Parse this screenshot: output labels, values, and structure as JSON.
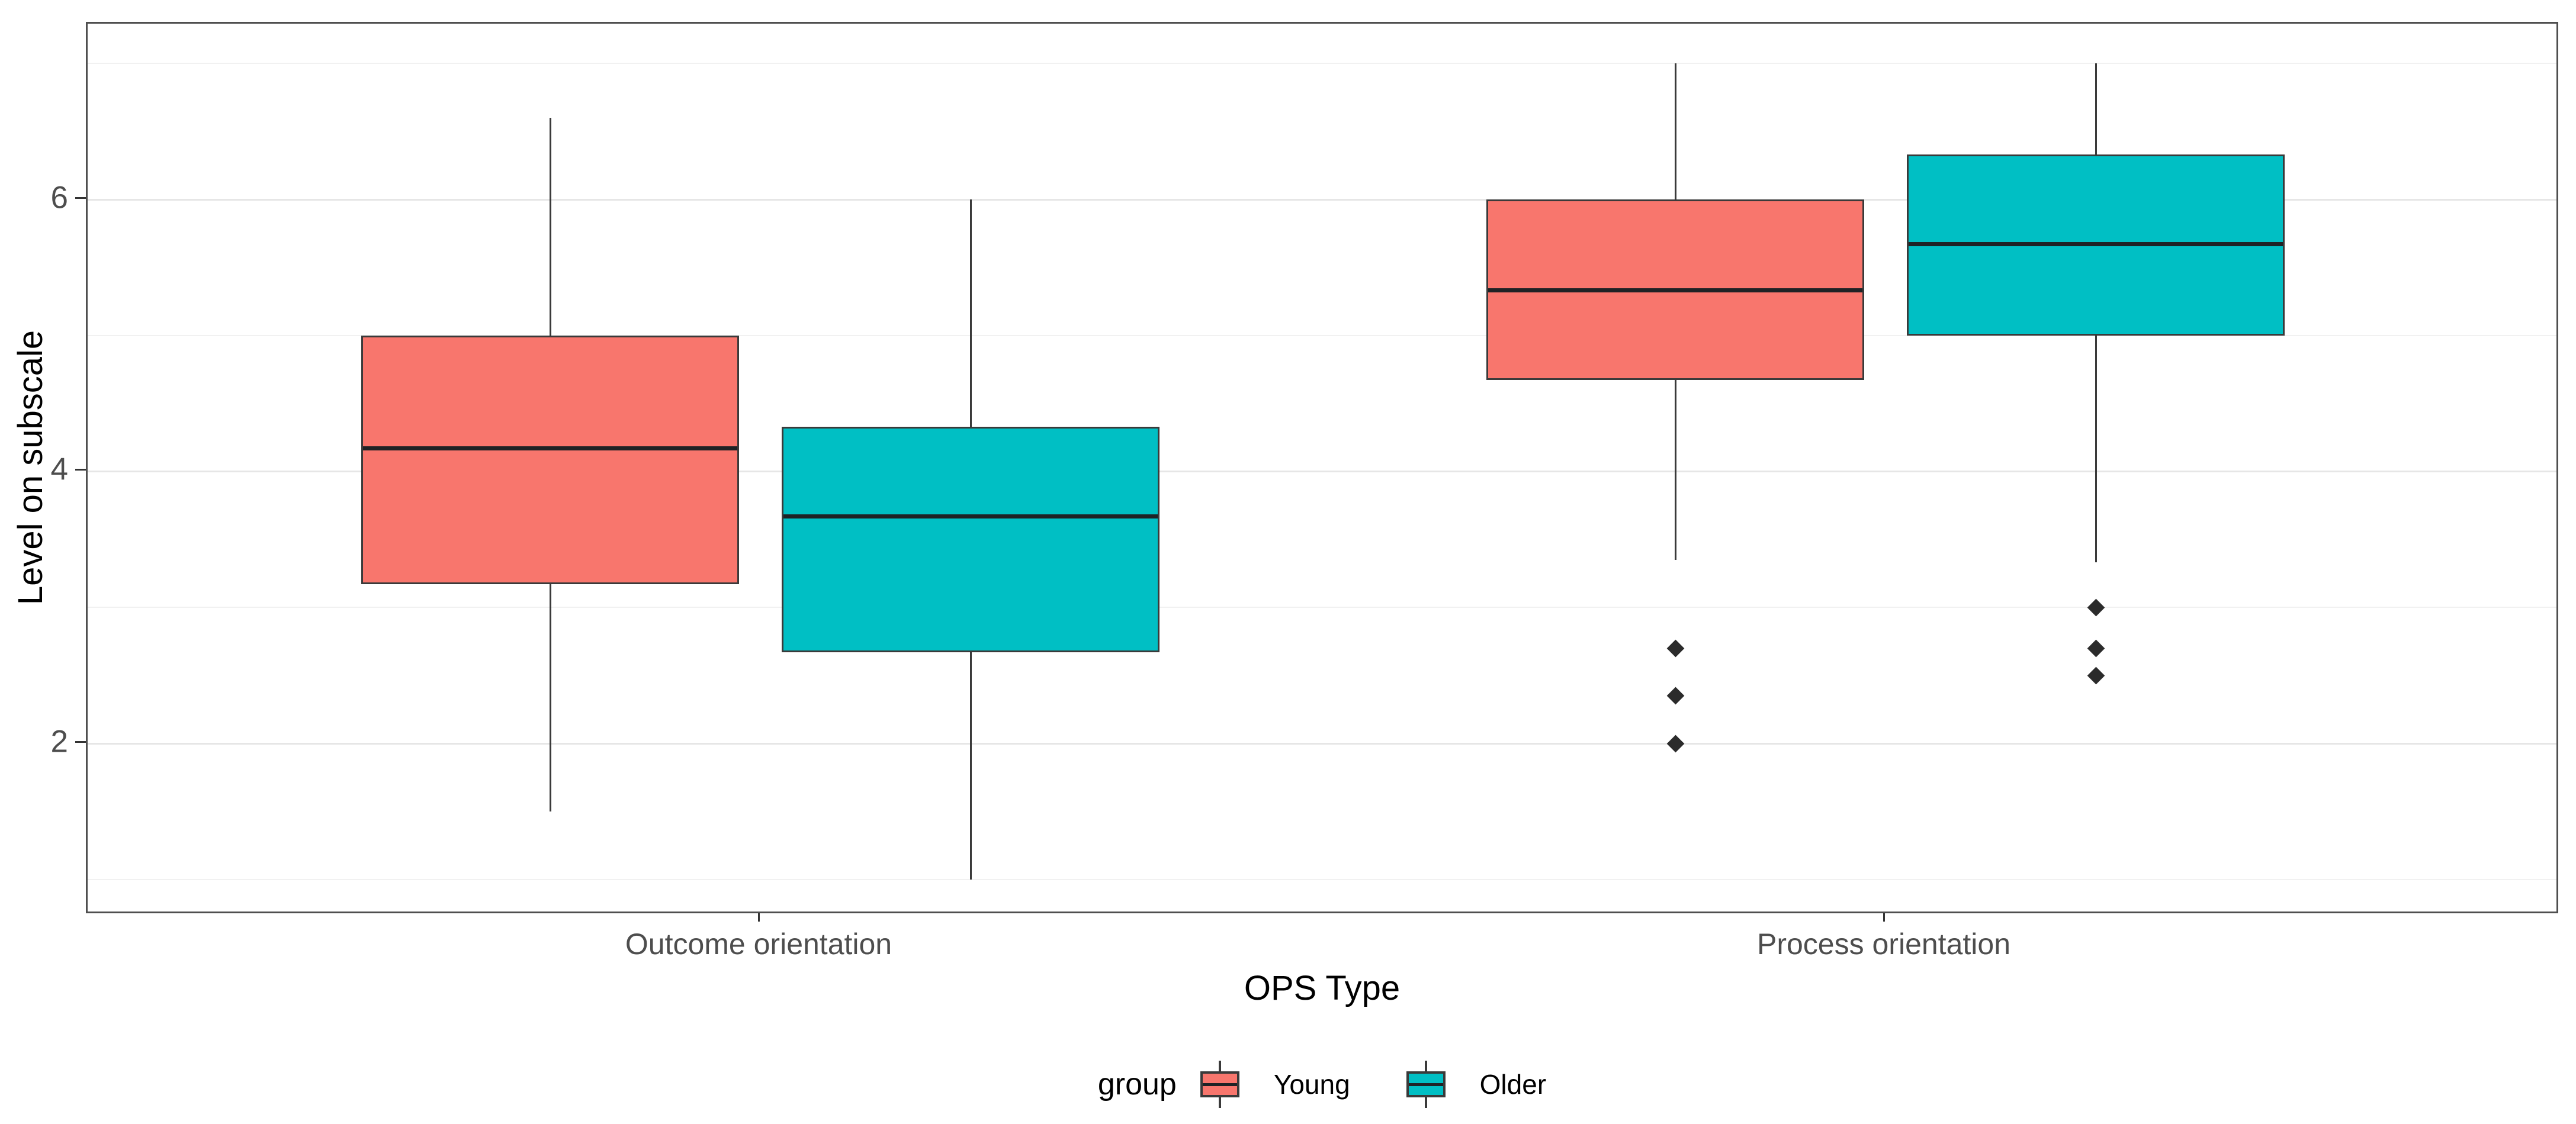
{
  "figure": {
    "background": "#ffffff"
  },
  "colors": {
    "young": "#F8766D",
    "older": "#00BFC4",
    "box_border": "#3a3a3a",
    "median_line": "#1f2225",
    "whisker": "#3a3a3a",
    "outlier": "#2b2b2b",
    "grid_major": "#e6e6e6",
    "grid_minor": "#f1f1f1",
    "panel_border": "#4f4f4f",
    "axis_text": "#4d4d4d",
    "axis_title": "#000000"
  },
  "y_axis": {
    "title": "Level on subscale",
    "major_ticks": [
      2,
      4,
      6
    ],
    "minor_ticks": [
      1,
      3,
      5,
      7
    ],
    "range": [
      0.74,
      7.29
    ]
  },
  "x_axis": {
    "title": "OPS Type",
    "categories": [
      "Outcome orientation",
      "Process orientation"
    ]
  },
  "legend": {
    "title": "group",
    "items": [
      {
        "label": "Young",
        "color_key": "young"
      },
      {
        "label": "Older",
        "color_key": "older"
      }
    ]
  },
  "chart_data": {
    "type": "boxplot",
    "title": "",
    "xlabel": "OPS Type",
    "ylabel": "Level on subscale",
    "ylim": [
      0.74,
      7.29
    ],
    "grid": "on",
    "legend_position": "bottom",
    "categories": [
      "Outcome orientation",
      "Process orientation"
    ],
    "groups": [
      "Young",
      "Older"
    ],
    "boxes": [
      {
        "category": "Outcome orientation",
        "group": "Young",
        "color_key": "young",
        "whisker_low": 1.5,
        "q1": 3.17,
        "median": 4.17,
        "q3": 5.0,
        "whisker_high": 6.6,
        "outliers": []
      },
      {
        "category": "Outcome orientation",
        "group": "Older",
        "color_key": "older",
        "whisker_low": 1.0,
        "q1": 2.67,
        "median": 3.67,
        "q3": 4.33,
        "whisker_high": 6.0,
        "outliers": []
      },
      {
        "category": "Process orientation",
        "group": "Young",
        "color_key": "young",
        "whisker_low": 3.35,
        "q1": 4.67,
        "median": 5.33,
        "q3": 6.0,
        "whisker_high": 7.0,
        "outliers": [
          2.7,
          2.35,
          2.0
        ]
      },
      {
        "category": "Process orientation",
        "group": "Older",
        "color_key": "older",
        "whisker_low": 3.33,
        "q1": 5.0,
        "median": 5.67,
        "q3": 6.33,
        "whisker_high": 7.0,
        "outliers": [
          3.0,
          2.7,
          2.5
        ]
      }
    ]
  }
}
